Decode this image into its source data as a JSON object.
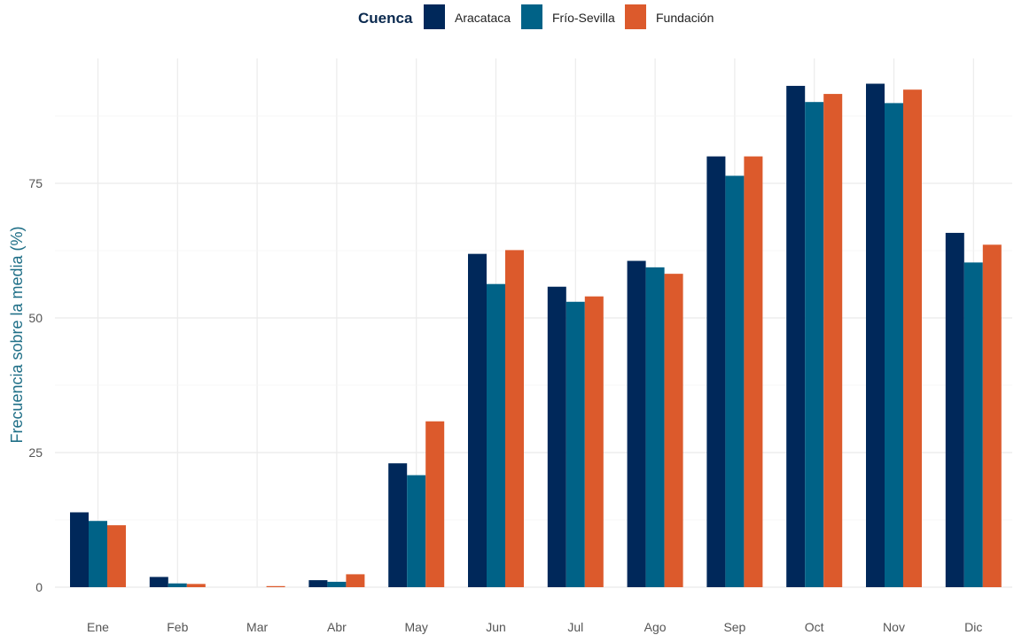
{
  "chart_data": {
    "type": "bar",
    "title": "",
    "xlabel": "",
    "ylabel": "Frecuencia sobre la media (%)",
    "ylim": [
      0,
      96
    ],
    "yticks": [
      0,
      25,
      50,
      75
    ],
    "grid": true,
    "legend": {
      "title": "Cuenca",
      "position": "top"
    },
    "categories": [
      "Ene",
      "Feb",
      "Mar",
      "Abr",
      "May",
      "Jun",
      "Jul",
      "Ago",
      "Sep",
      "Oct",
      "Nov",
      "Dic"
    ],
    "series": [
      {
        "name": "Aracataca",
        "color": "#00285a",
        "values": [
          13.9,
          1.9,
          0,
          1.3,
          23.0,
          61.9,
          55.8,
          60.6,
          80.0,
          93.1,
          93.5,
          65.8
        ]
      },
      {
        "name": "Frío-Sevilla",
        "color": "#006287",
        "values": [
          12.3,
          0.7,
          0,
          1.0,
          20.8,
          56.3,
          53.0,
          59.4,
          76.4,
          90.1,
          89.9,
          60.3
        ]
      },
      {
        "name": "Fundación",
        "color": "#dc5a2c",
        "values": [
          11.5,
          0.6,
          0.2,
          2.4,
          30.8,
          62.6,
          54.0,
          58.2,
          80.0,
          91.6,
          92.4,
          63.6
        ]
      }
    ]
  }
}
